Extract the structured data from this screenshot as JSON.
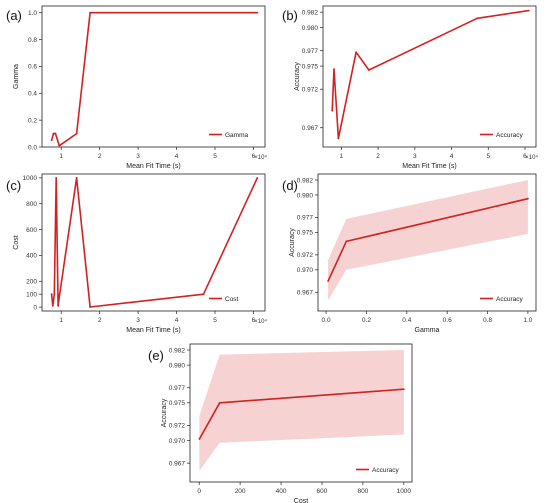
{
  "chart_data": [
    {
      "panel_label": "(a)",
      "type": "line",
      "xlabel": "Mean Fit Time (s)",
      "ylabel": "Gamma",
      "x_multiplier": "×10⁴",
      "xlim": [
        0.5,
        6.3
      ],
      "ylim": [
        0,
        1.05
      ],
      "xticks": [
        1,
        2,
        3,
        4,
        5,
        6
      ],
      "yticks": [
        0.0,
        0.2,
        0.4,
        0.6,
        0.8,
        1.0
      ],
      "ytick_labels": [
        "0.0",
        "0.2",
        "0.4",
        "0.6",
        "0.8",
        "1.0"
      ],
      "legend": "lower right",
      "series": [
        {
          "name": "Gamma",
          "color": "#d42020",
          "x": [
            0.75,
            0.8,
            0.85,
            0.95,
            1.4,
            1.75,
            6.1
          ],
          "y": [
            0.05,
            0.1,
            0.1,
            0.01,
            0.1,
            1.0,
            1.0
          ]
        }
      ]
    },
    {
      "panel_label": "(b)",
      "type": "line",
      "xlabel": "Mean Fit Time (s)",
      "ylabel": "Accuracy",
      "x_multiplier": "×10⁴",
      "xlim": [
        0.5,
        6.3
      ],
      "ylim": [
        0.9645,
        0.9828
      ],
      "xticks": [
        1,
        2,
        3,
        4,
        5,
        6
      ],
      "yticks": [
        0.967,
        0.972,
        0.975,
        0.977,
        0.98,
        0.982
      ],
      "ytick_labels": [
        "0.967",
        "0.972",
        "0.975",
        "0.977",
        "0.980",
        "0.982"
      ],
      "legend": "lower right",
      "series": [
        {
          "name": "Accuracy",
          "color": "#d42020",
          "x": [
            0.75,
            0.8,
            0.92,
            1.4,
            1.75,
            4.7,
            6.1
          ],
          "y": [
            0.9692,
            0.9746,
            0.9656,
            0.9768,
            0.9745,
            0.9812,
            0.9822
          ]
        }
      ]
    },
    {
      "panel_label": "(c)",
      "type": "line",
      "xlabel": "Mean Fit Time (s)",
      "ylabel": "Cost",
      "x_multiplier": "×10⁴",
      "xlim": [
        0.5,
        6.3
      ],
      "ylim": [
        -30,
        1030
      ],
      "xticks": [
        1,
        2,
        3,
        4,
        5,
        6
      ],
      "yticks": [
        0,
        100,
        200,
        400,
        600,
        800,
        1000
      ],
      "ytick_labels": [
        "0",
        "100",
        "200",
        "400",
        "600",
        "800",
        "1000"
      ],
      "legend": "lower right",
      "series": [
        {
          "name": "Cost",
          "color": "#d42020",
          "x": [
            0.75,
            0.78,
            0.82,
            0.87,
            0.92,
            0.96,
            1.4,
            1.75,
            4.7,
            6.1
          ],
          "y": [
            100,
            10,
            100,
            1000,
            10,
            100,
            1000,
            1,
            100,
            1000
          ]
        }
      ]
    },
    {
      "panel_label": "(d)",
      "type": "line",
      "xlabel": "Gamma",
      "ylabel": "Accuracy",
      "xlim": [
        -0.04,
        1.04
      ],
      "ylim": [
        0.9645,
        0.9828
      ],
      "xticks": [
        0.0,
        0.2,
        0.4,
        0.6,
        0.8,
        1.0
      ],
      "xtick_labels": [
        "0.0",
        "0.2",
        "0.4",
        "0.6",
        "0.8",
        "1.0"
      ],
      "yticks": [
        0.967,
        0.97,
        0.972,
        0.975,
        0.977,
        0.98,
        0.982
      ],
      "ytick_labels": [
        "0.967",
        "0.970",
        "0.972",
        "0.975",
        "0.977",
        "0.980",
        "0.982"
      ],
      "legend": "lower right",
      "series": [
        {
          "name": "Accuracy",
          "color": "#d42020",
          "x": [
            0.01,
            0.1,
            1.0
          ],
          "y": [
            0.9685,
            0.9738,
            0.9795
          ],
          "lower": [
            0.9659,
            0.97,
            0.9748
          ],
          "upper": [
            0.9713,
            0.9768,
            0.982
          ]
        }
      ]
    },
    {
      "panel_label": "(e)",
      "type": "line",
      "xlabel": "Cost",
      "ylabel": "Accuracy",
      "xlim": [
        -45,
        1040
      ],
      "ylim": [
        0.9645,
        0.9828
      ],
      "xticks": [
        0,
        200,
        400,
        600,
        800,
        1000
      ],
      "yticks": [
        0.967,
        0.97,
        0.972,
        0.975,
        0.977,
        0.98,
        0.982
      ],
      "ytick_labels": [
        "0.967",
        "0.970",
        "0.972",
        "0.975",
        "0.977",
        "0.980",
        "0.982"
      ],
      "legend": "lower right",
      "series": [
        {
          "name": "Accuracy",
          "color": "#d42020",
          "x": [
            1,
            100,
            1000
          ],
          "y": [
            0.9702,
            0.975,
            0.9768
          ],
          "lower": [
            0.966,
            0.9697,
            0.9708
          ],
          "upper": [
            0.9733,
            0.9814,
            0.982
          ]
        }
      ]
    }
  ]
}
